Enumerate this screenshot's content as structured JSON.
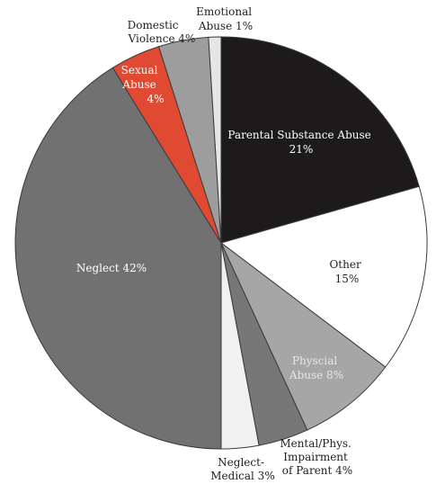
{
  "chart_data": {
    "type": "pie",
    "title": "",
    "slices": [
      {
        "label_lines": [
          "Parental Substance Abuse",
          "21%"
        ],
        "value": 21,
        "color": "#1c1a1b"
      },
      {
        "label_lines": [
          "Other",
          "15%"
        ],
        "value": 15,
        "color": "#ffffff"
      },
      {
        "label_lines": [
          "Physcial",
          "Abuse 8%"
        ],
        "value": 8,
        "color": "#a6a6a6"
      },
      {
        "label_lines": [
          "Mental/Phys.",
          "Impairment",
          "of Parent 4%"
        ],
        "value": 4,
        "color": "#777777"
      },
      {
        "label_lines": [
          "Neglect-",
          "Medical 3%"
        ],
        "value": 3,
        "color": "#f1f1f1"
      },
      {
        "label_lines": [
          "Neglect 42%"
        ],
        "value": 42,
        "color": "#717171"
      },
      {
        "label_lines": [
          "Sexual",
          "Abuse",
          "4%"
        ],
        "value": 4,
        "color": "#e04a32"
      },
      {
        "label_lines": [
          "Domestic",
          "Violence 4%"
        ],
        "value": 4,
        "color": "#9d9d9d"
      },
      {
        "label_lines": [
          "Emotional",
          "Abuse 1%"
        ],
        "value": 1,
        "color": "#e6e6e6"
      }
    ]
  }
}
